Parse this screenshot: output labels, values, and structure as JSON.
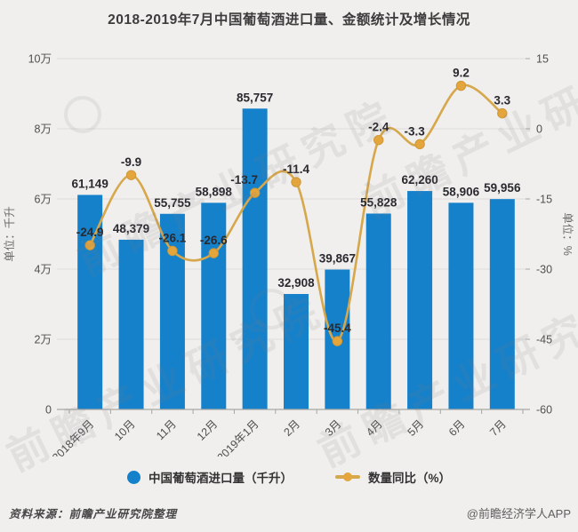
{
  "title": "2018-2019年7月中国葡萄酒进口量、金额统计及增长情况",
  "chart_data": {
    "type": "bar",
    "subtype": "bar-line-combo",
    "categories": [
      "2018年9月",
      "10月",
      "11月",
      "12月",
      "2019年1月",
      "2月",
      "3月",
      "4月",
      "5月",
      "6月",
      "7月"
    ],
    "series": [
      {
        "name": "中国葡萄酒进口量（千升）",
        "type": "bar",
        "axis": "left",
        "color": "#1581cb",
        "values": [
          61149,
          48379,
          55755,
          58898,
          85757,
          32908,
          39867,
          55828,
          62260,
          58906,
          59956
        ],
        "labels": [
          "61,149",
          "48,379",
          "55,755",
          "58,898",
          "85,757",
          "32,908",
          "39,867",
          "55,828",
          "62,260",
          "58,906",
          "59,956"
        ]
      },
      {
        "name": "数量同比（%）",
        "type": "line",
        "axis": "right",
        "color": "#d6a74b",
        "marker_color": "#e3a53c",
        "values": [
          -24.9,
          -9.9,
          -26.1,
          -26.6,
          -13.7,
          -11.4,
          -45.4,
          -2.4,
          -3.3,
          9.2,
          3.3
        ],
        "labels": [
          "-24.9",
          "-9.9",
          "-26.1",
          "-26.6",
          "-13.7",
          "-11.4",
          "-45.4",
          "-2.4",
          "-3.3",
          "9.2",
          "3.3"
        ]
      }
    ],
    "left_axis": {
      "name": "单位：千升",
      "min": 0,
      "max": 100000,
      "tick_values": [
        100000,
        80000,
        60000,
        40000,
        20000,
        0
      ],
      "tick_labels": [
        "10万",
        "8万",
        "6万",
        "4万",
        "2万",
        "0"
      ]
    },
    "right_axis": {
      "name": "单位：%",
      "min": -60,
      "max": 15,
      "tick_values": [
        15,
        0,
        -15,
        -30,
        -45,
        -60
      ],
      "tick_labels": [
        "15",
        "0",
        "-15",
        "-30",
        "-45",
        "-60"
      ]
    },
    "grid": true,
    "legend_position": "bottom",
    "value_label_color": "#29292f",
    "axis_text_color": "#4f4f4f",
    "gridline_color": "#dedddb",
    "axis_line_color": "#a7a6a4"
  },
  "legend": {
    "items": [
      {
        "label": "中国葡萄酒进口量（千升）",
        "color": "#1581cb",
        "marker": "circle"
      },
      {
        "label": "数量同比（%）",
        "color": "#d6a74b",
        "marker": "line-dot"
      }
    ]
  },
  "footer": {
    "source": "资料来源：前瞻产业研究院整理",
    "credit": "@前瞻经济学人APP"
  },
  "watermark": {
    "text": "前瞻产业研究院"
  }
}
